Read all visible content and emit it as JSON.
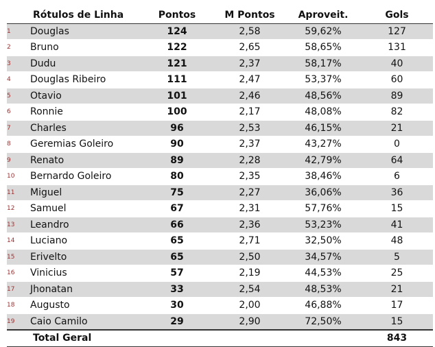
{
  "table": {
    "headers": {
      "label": "Rótulos de Linha",
      "pontos": "Pontos",
      "m_pontos": "M Pontos",
      "aproveit": "Aproveit.",
      "gols": "Gols"
    },
    "rows": [
      {
        "idx": "1",
        "name": "Douglas",
        "pontos": "124",
        "m_pontos": "2,58",
        "aproveit": "59,62%",
        "gols": "127"
      },
      {
        "idx": "2",
        "name": "Bruno",
        "pontos": "122",
        "m_pontos": "2,65",
        "aproveit": "58,65%",
        "gols": "131"
      },
      {
        "idx": "3",
        "name": "Dudu",
        "pontos": "121",
        "m_pontos": "2,37",
        "aproveit": "58,17%",
        "gols": "40"
      },
      {
        "idx": "4",
        "name": "Douglas Ribeiro",
        "pontos": "111",
        "m_pontos": "2,47",
        "aproveit": "53,37%",
        "gols": "60"
      },
      {
        "idx": "5",
        "name": "Otavio",
        "pontos": "101",
        "m_pontos": "2,46",
        "aproveit": "48,56%",
        "gols": "89"
      },
      {
        "idx": "6",
        "name": "Ronnie",
        "pontos": "100",
        "m_pontos": "2,17",
        "aproveit": "48,08%",
        "gols": "82"
      },
      {
        "idx": "7",
        "name": "Charles",
        "pontos": "96",
        "m_pontos": "2,53",
        "aproveit": "46,15%",
        "gols": "21"
      },
      {
        "idx": "8",
        "name": "Geremias Goleiro",
        "pontos": "90",
        "m_pontos": "2,37",
        "aproveit": "43,27%",
        "gols": "0"
      },
      {
        "idx": "9",
        "name": "Renato",
        "pontos": "89",
        "m_pontos": "2,28",
        "aproveit": "42,79%",
        "gols": "64"
      },
      {
        "idx": "10",
        "name": "Bernardo Goleiro",
        "pontos": "80",
        "m_pontos": "2,35",
        "aproveit": "38,46%",
        "gols": "6"
      },
      {
        "idx": "11",
        "name": "Miguel",
        "pontos": "75",
        "m_pontos": "2,27",
        "aproveit": "36,06%",
        "gols": "36"
      },
      {
        "idx": "12",
        "name": "Samuel",
        "pontos": "67",
        "m_pontos": "2,31",
        "aproveit": "57,76%",
        "gols": "15"
      },
      {
        "idx": "13",
        "name": "Leandro",
        "pontos": "66",
        "m_pontos": "2,36",
        "aproveit": "53,23%",
        "gols": "41"
      },
      {
        "idx": "14",
        "name": "Luciano",
        "pontos": "65",
        "m_pontos": "2,71",
        "aproveit": "32,50%",
        "gols": "48"
      },
      {
        "idx": "15",
        "name": "Erivelto",
        "pontos": "65",
        "m_pontos": "2,50",
        "aproveit": "34,57%",
        "gols": "5"
      },
      {
        "idx": "16",
        "name": "Vinicius",
        "pontos": "57",
        "m_pontos": "2,19",
        "aproveit": "44,53%",
        "gols": "25"
      },
      {
        "idx": "17",
        "name": "Jhonatan",
        "pontos": "33",
        "m_pontos": "2,54",
        "aproveit": "48,53%",
        "gols": "21"
      },
      {
        "idx": "18",
        "name": "Augusto",
        "pontos": "30",
        "m_pontos": "2,00",
        "aproveit": "46,88%",
        "gols": "17"
      },
      {
        "idx": "19",
        "name": "Caio Camilo",
        "pontos": "29",
        "m_pontos": "2,90",
        "aproveit": "72,50%",
        "gols": "15"
      }
    ],
    "total": {
      "label": "Total Geral",
      "gols": "843"
    },
    "colors": {
      "band": "#d9d9d9",
      "index_marker": "#a03030"
    }
  }
}
